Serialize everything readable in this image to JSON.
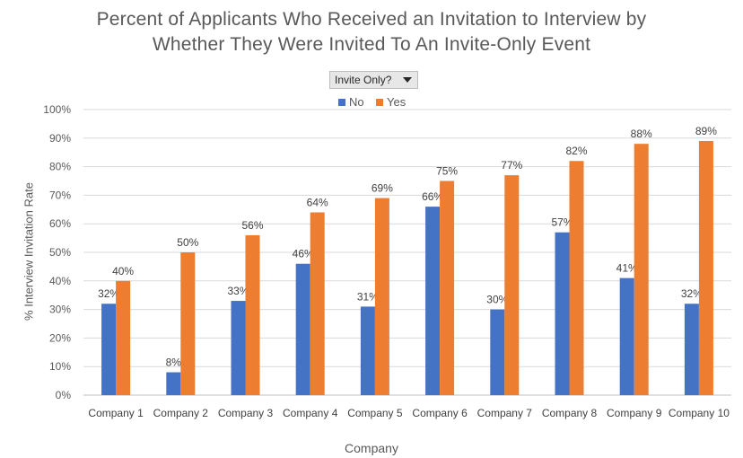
{
  "chart_data": {
    "type": "bar",
    "title_lines": [
      "Percent of Applicants Who Received an Invitation to Interview by",
      "Whether They Were Invited To An Invite-Only Event"
    ],
    "filter_label": "Invite  Only?",
    "xlabel": "Company",
    "ylabel": "% Interview Invitation Rate",
    "ylim": [
      0,
      100
    ],
    "y_ticks": [
      "0%",
      "10%",
      "20%",
      "30%",
      "40%",
      "50%",
      "60%",
      "70%",
      "80%",
      "90%",
      "100%"
    ],
    "grid": true,
    "legend_position": "top-center",
    "categories": [
      "Company 1",
      "Company 2",
      "Company 3",
      "Company 4",
      "Company 5",
      "Company 6",
      "Company 7",
      "Company 8",
      "Company 9",
      "Company 10"
    ],
    "series": [
      {
        "name": "No",
        "color": "#4472c4",
        "values": [
          32,
          8,
          33,
          46,
          31,
          66,
          30,
          57,
          41,
          32
        ],
        "labels": [
          "32%",
          "8%",
          "33%",
          "46%",
          "31%",
          "66%",
          "30%",
          "57%",
          "41%",
          "32%"
        ]
      },
      {
        "name": "Yes",
        "color": "#ed7d31",
        "values": [
          40,
          50,
          56,
          64,
          69,
          75,
          77,
          82,
          88,
          89
        ],
        "labels": [
          "40%",
          "50%",
          "56%",
          "64%",
          "69%",
          "75%",
          "77%",
          "82%",
          "88%",
          "89%"
        ]
      }
    ]
  }
}
